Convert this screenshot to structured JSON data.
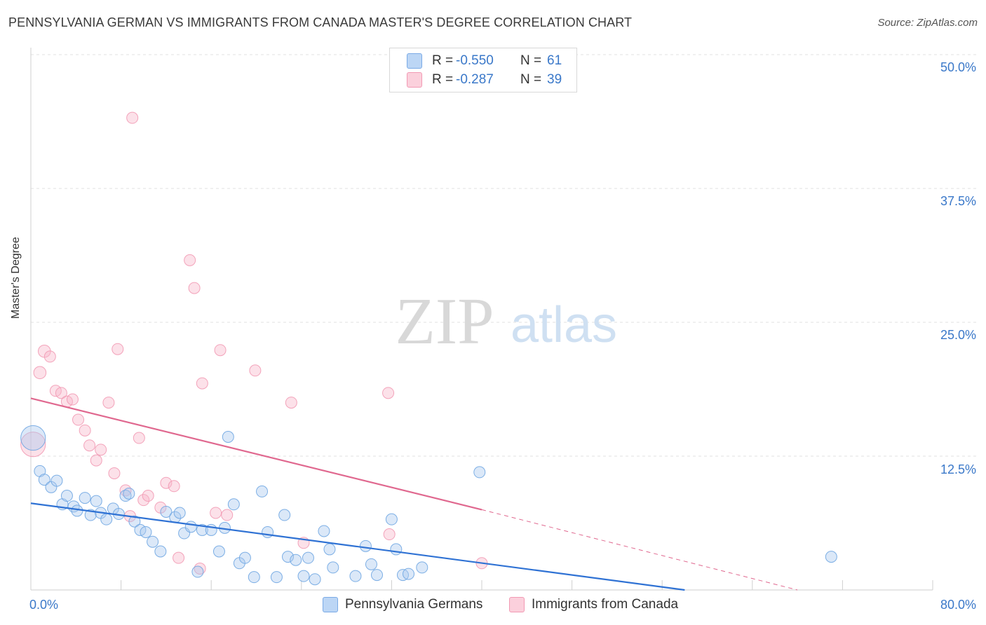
{
  "title": "PENNSYLVANIA GERMAN VS IMMIGRANTS FROM CANADA MASTER'S DEGREE CORRELATION CHART",
  "source": "Source: ZipAtlas.com",
  "watermark": {
    "zip": "ZIP",
    "atlas": "atlas"
  },
  "legend": {
    "rows": [
      {
        "r_label": "R =",
        "r_value": "-0.550",
        "n_label": "N =",
        "n_value": "61",
        "color": "#a9c8ef"
      },
      {
        "r_label": "R =",
        "r_value": "-0.287",
        "n_label": "N =",
        "n_value": "39",
        "color": "#f7b7ca"
      }
    ]
  },
  "series_names": {
    "blue": "Pennsylvania Germans",
    "pink": "Immigrants from Canada"
  },
  "colors": {
    "blue": "#6fa6e2",
    "blue_line": "#2f72d4",
    "pink": "#f29ab4",
    "pink_line": "#e0688f",
    "axis_text": "#3a78c9"
  },
  "chart_data": {
    "type": "scatter",
    "title": "PENNSYLVANIA GERMAN VS IMMIGRANTS FROM CANADA MASTER'S DEGREE CORRELATION CHART",
    "xlabel": "",
    "ylabel": "Master's Degree",
    "xlim": [
      0,
      80
    ],
    "ylim": [
      0,
      50
    ],
    "x_tick_labels": [
      "0.0%",
      "80.0%"
    ],
    "y_ticks": [
      12.5,
      25.0,
      37.5,
      50.0
    ],
    "y_tick_labels": [
      "12.5%",
      "25.0%",
      "37.5%",
      "50.0%"
    ],
    "grid": true,
    "legend_position": "top-center",
    "series": [
      {
        "name": "Pennsylvania Germans",
        "r": -0.55,
        "n": 61,
        "trend": {
          "x0": 0,
          "y0": 8.1,
          "x1": 58,
          "y1": 0
        },
        "points": [
          [
            0.2,
            14.2,
            22
          ],
          [
            0.8,
            11.1,
            10
          ],
          [
            1.2,
            10.3,
            10
          ],
          [
            1.8,
            9.6,
            10
          ],
          [
            2.3,
            10.2,
            10
          ],
          [
            2.8,
            8.0,
            10
          ],
          [
            3.2,
            8.8,
            10
          ],
          [
            3.8,
            7.8,
            10
          ],
          [
            4.1,
            7.4,
            10
          ],
          [
            4.8,
            8.6,
            10
          ],
          [
            5.3,
            7.0,
            10
          ],
          [
            5.8,
            8.3,
            10
          ],
          [
            6.2,
            7.2,
            10
          ],
          [
            6.7,
            6.6,
            10
          ],
          [
            7.3,
            7.6,
            10
          ],
          [
            7.8,
            7.1,
            10
          ],
          [
            8.4,
            8.8,
            10
          ],
          [
            8.7,
            9.0,
            10
          ],
          [
            9.2,
            6.4,
            10
          ],
          [
            9.7,
            5.6,
            10
          ],
          [
            10.2,
            5.4,
            10
          ],
          [
            10.8,
            4.5,
            10
          ],
          [
            11.5,
            3.6,
            10
          ],
          [
            12.0,
            7.3,
            10
          ],
          [
            12.8,
            6.8,
            10
          ],
          [
            13.2,
            7.2,
            10
          ],
          [
            13.6,
            5.3,
            10
          ],
          [
            14.2,
            5.9,
            10
          ],
          [
            14.8,
            1.7,
            10
          ],
          [
            15.2,
            5.6,
            10
          ],
          [
            16.0,
            5.6,
            10
          ],
          [
            16.7,
            3.6,
            10
          ],
          [
            17.2,
            5.8,
            10
          ],
          [
            17.5,
            14.3,
            10
          ],
          [
            18.0,
            8.0,
            10
          ],
          [
            18.5,
            2.5,
            10
          ],
          [
            19.0,
            3.0,
            10
          ],
          [
            19.8,
            1.2,
            10
          ],
          [
            20.5,
            9.2,
            10
          ],
          [
            21.0,
            5.4,
            10
          ],
          [
            21.8,
            1.2,
            10
          ],
          [
            22.5,
            7.0,
            10
          ],
          [
            22.8,
            3.1,
            10
          ],
          [
            23.5,
            2.8,
            10
          ],
          [
            24.2,
            1.3,
            10
          ],
          [
            24.6,
            3.0,
            10
          ],
          [
            25.2,
            1.0,
            10
          ],
          [
            26.0,
            5.5,
            10
          ],
          [
            26.5,
            3.8,
            10
          ],
          [
            26.8,
            2.1,
            10
          ],
          [
            28.8,
            1.3,
            10
          ],
          [
            29.7,
            4.1,
            10
          ],
          [
            30.2,
            2.4,
            10
          ],
          [
            30.7,
            1.4,
            10
          ],
          [
            32.0,
            6.6,
            10
          ],
          [
            32.4,
            3.8,
            10
          ],
          [
            33.0,
            1.4,
            10
          ],
          [
            33.5,
            1.5,
            10
          ],
          [
            34.7,
            2.1,
            10
          ],
          [
            39.8,
            11.0,
            10
          ],
          [
            71.0,
            3.1,
            10
          ]
        ]
      },
      {
        "name": "Immigrants from Canada",
        "r": -0.287,
        "n": 39,
        "trend": {
          "x0": 0,
          "y0": 17.9,
          "x1": 40,
          "y1": 7.5,
          "dash_x1": 68,
          "dash_y1": 0
        },
        "points": [
          [
            0.2,
            13.6,
            22
          ],
          [
            0.8,
            20.3,
            11
          ],
          [
            1.2,
            22.3,
            11
          ],
          [
            1.7,
            21.8,
            10
          ],
          [
            2.2,
            18.6,
            10
          ],
          [
            2.7,
            18.4,
            10
          ],
          [
            3.2,
            17.6,
            10
          ],
          [
            3.7,
            17.8,
            10
          ],
          [
            4.2,
            15.9,
            10
          ],
          [
            4.8,
            14.9,
            10
          ],
          [
            5.2,
            13.5,
            10
          ],
          [
            5.8,
            12.1,
            10
          ],
          [
            6.2,
            13.1,
            10
          ],
          [
            6.9,
            17.5,
            10
          ],
          [
            7.4,
            10.9,
            10
          ],
          [
            7.7,
            22.5,
            10
          ],
          [
            8.4,
            9.3,
            10
          ],
          [
            8.8,
            6.9,
            10
          ],
          [
            9.0,
            44.1,
            10
          ],
          [
            9.6,
            14.2,
            10
          ],
          [
            10.0,
            8.4,
            10
          ],
          [
            10.4,
            8.8,
            10
          ],
          [
            11.5,
            7.7,
            10
          ],
          [
            12.0,
            10.0,
            10
          ],
          [
            12.7,
            9.7,
            10
          ],
          [
            13.1,
            3.0,
            10
          ],
          [
            14.1,
            30.8,
            10
          ],
          [
            14.5,
            28.2,
            10
          ],
          [
            15.0,
            2.0,
            10
          ],
          [
            15.2,
            19.3,
            10
          ],
          [
            16.4,
            7.2,
            10
          ],
          [
            16.8,
            22.4,
            10
          ],
          [
            17.4,
            7.0,
            10
          ],
          [
            19.9,
            20.5,
            10
          ],
          [
            23.1,
            17.5,
            10
          ],
          [
            24.2,
            4.4,
            10
          ],
          [
            31.7,
            18.4,
            10
          ],
          [
            31.8,
            5.2,
            10
          ],
          [
            40.0,
            2.5,
            10
          ]
        ]
      }
    ]
  }
}
